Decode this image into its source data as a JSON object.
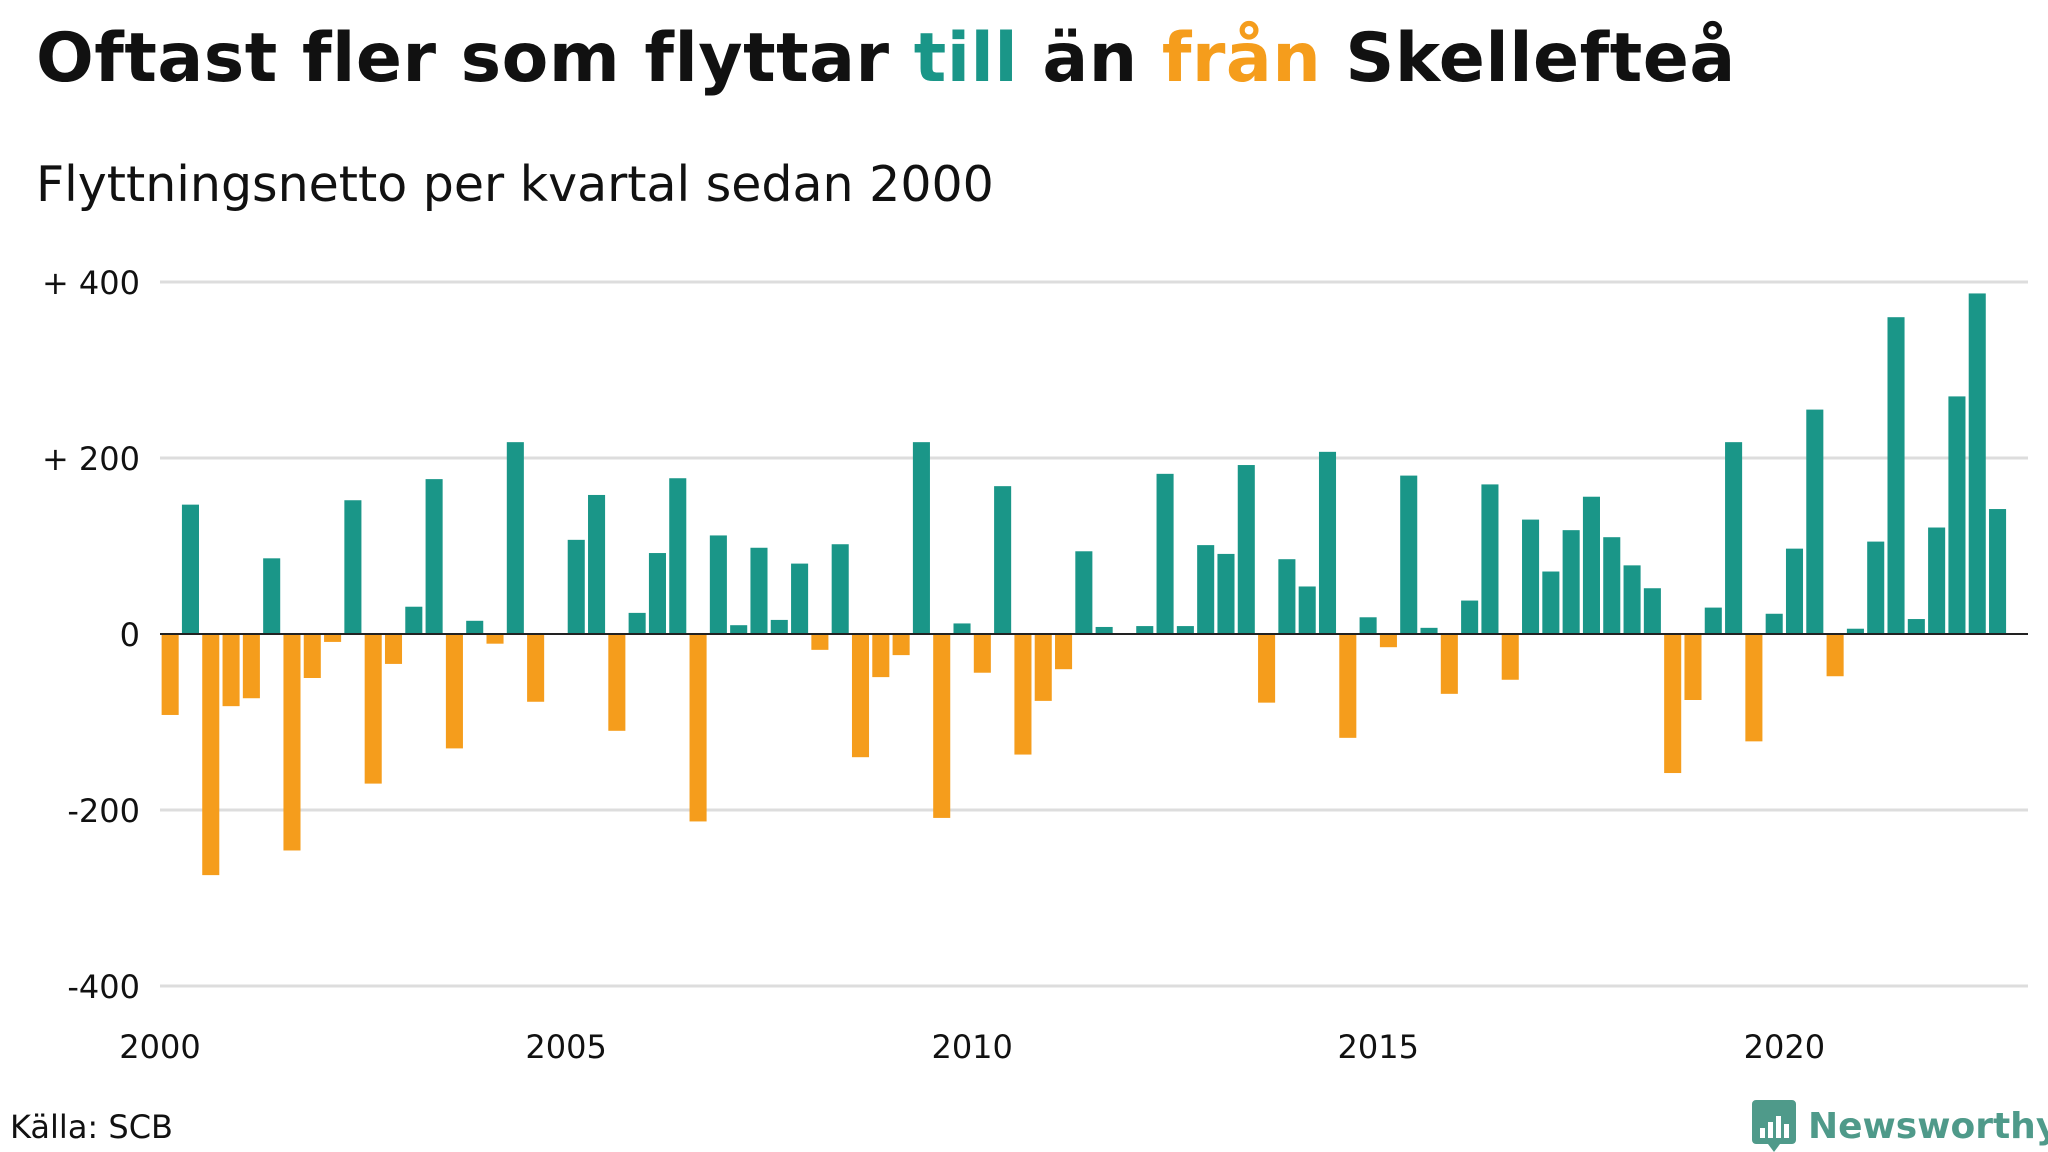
{
  "title": {
    "part1": "Oftast fler som flyttar ",
    "till": "till",
    "part2": " än ",
    "fran": "från",
    "part3": " Skellefteå"
  },
  "subtitle": "Flyttningsnetto per kvartal sedan 2000",
  "source": "Källa: SCB",
  "brand": "Newsworthy",
  "colors": {
    "positive": "#1a9688",
    "negative": "#f59d1c",
    "grid": "#dddddd",
    "zero_line": "#222222",
    "brand": "#4f9a8a"
  },
  "icons": {
    "brand_logo": "chart-bubble-icon"
  },
  "chart_data": {
    "type": "bar",
    "start_year": 2000,
    "values": [
      -92,
      147,
      -274,
      -82,
      -73,
      86,
      -246,
      -50,
      -9,
      152,
      -170,
      -34,
      31,
      176,
      -130,
      15,
      -11,
      218,
      -77,
      0,
      107,
      158,
      -110,
      24,
      92,
      177,
      -213,
      112,
      10,
      98,
      16,
      80,
      -18,
      102,
      -140,
      -49,
      -24,
      218,
      -209,
      12,
      -44,
      168,
      -137,
      -76,
      -40,
      94,
      8,
      0,
      9,
      182,
      9,
      101,
      91,
      192,
      -78,
      85,
      54,
      207,
      -118,
      19,
      -15,
      180,
      7,
      -68,
      38,
      170,
      -52,
      130,
      71,
      118,
      156,
      110,
      78,
      52,
      -158,
      -75,
      30,
      218,
      -122,
      23,
      97,
      255,
      -48,
      6,
      105,
      360,
      17,
      121,
      270,
      387,
      142
    ],
    "y_ticks": [
      {
        "value": 400,
        "label": "+ 400"
      },
      {
        "value": 200,
        "label": "+ 200"
      },
      {
        "value": 0,
        "label": "0"
      },
      {
        "value": -200,
        "label": "-200"
      },
      {
        "value": -400,
        "label": "-400"
      }
    ],
    "x_ticks": [
      {
        "year": 2000,
        "label": "2000"
      },
      {
        "year": 2005,
        "label": "2005"
      },
      {
        "year": 2010,
        "label": "2010"
      },
      {
        "year": 2015,
        "label": "2015"
      },
      {
        "year": 2020,
        "label": "2020"
      }
    ],
    "ylim": [
      -400,
      400
    ],
    "xlim": [
      2000,
      2023
    ],
    "grid": true
  }
}
